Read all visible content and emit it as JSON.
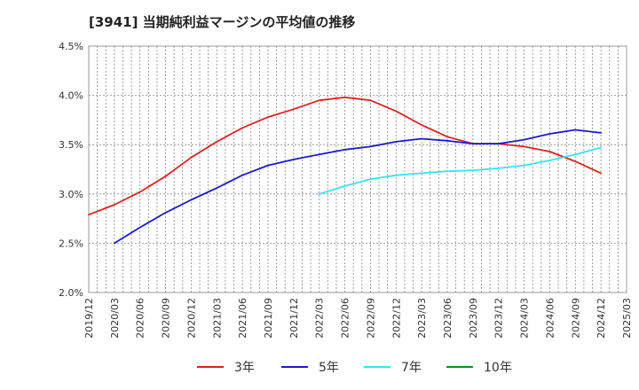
{
  "chart_data": {
    "type": "line",
    "title": "[3941]  当期純利益マージンの平均値の推移",
    "xlabel": "",
    "ylabel": "",
    "y_unit": "%",
    "ylim": [
      2.0,
      4.5
    ],
    "y_ticks": [
      "2.0%",
      "2.5%",
      "3.0%",
      "3.5%",
      "4.0%",
      "4.5%"
    ],
    "x_ticks": [
      "2019/12",
      "2020/03",
      "2020/06",
      "2020/09",
      "2020/12",
      "2021/03",
      "2021/06",
      "2021/09",
      "2021/12",
      "2022/03",
      "2022/06",
      "2022/09",
      "2022/12",
      "2023/03",
      "2023/06",
      "2023/09",
      "2023/12",
      "2024/03",
      "2024/06",
      "2024/09",
      "2024/12",
      "2025/03"
    ],
    "grid": true,
    "legend_position": "bottom",
    "series": [
      {
        "name": "3年",
        "color": "#dd2222",
        "x": [
          "2019/12",
          "2020/03",
          "2020/06",
          "2020/09",
          "2020/12",
          "2021/03",
          "2021/06",
          "2021/09",
          "2021/12",
          "2022/03",
          "2022/06",
          "2022/09",
          "2022/12",
          "2023/03",
          "2023/06",
          "2023/09",
          "2023/12",
          "2024/03",
          "2024/06",
          "2024/09",
          "2024/12"
        ],
        "values": [
          2.79,
          2.89,
          3.02,
          3.18,
          3.37,
          3.53,
          3.67,
          3.78,
          3.86,
          3.95,
          3.98,
          3.95,
          3.84,
          3.7,
          3.58,
          3.51,
          3.51,
          3.48,
          3.43,
          3.33,
          3.21
        ]
      },
      {
        "name": "5年",
        "color": "#1a1acc",
        "x": [
          "2020/03",
          "2020/06",
          "2020/09",
          "2020/12",
          "2021/03",
          "2021/06",
          "2021/09",
          "2021/12",
          "2022/03",
          "2022/06",
          "2022/09",
          "2022/12",
          "2023/03",
          "2023/06",
          "2023/09",
          "2023/12",
          "2024/03",
          "2024/06",
          "2024/09",
          "2024/12"
        ],
        "values": [
          2.5,
          2.66,
          2.81,
          2.94,
          3.06,
          3.19,
          3.29,
          3.35,
          3.4,
          3.45,
          3.48,
          3.53,
          3.56,
          3.54,
          3.51,
          3.51,
          3.55,
          3.61,
          3.65,
          3.62
        ]
      },
      {
        "name": "7年",
        "color": "#33e6f0",
        "x": [
          "2022/03",
          "2022/06",
          "2022/09",
          "2022/12",
          "2023/03",
          "2023/06",
          "2023/09",
          "2023/12",
          "2024/03",
          "2024/06",
          "2024/09",
          "2024/12"
        ],
        "values": [
          3.0,
          3.08,
          3.15,
          3.19,
          3.21,
          3.23,
          3.24,
          3.26,
          3.29,
          3.34,
          3.4,
          3.47
        ]
      },
      {
        "name": "10年",
        "color": "#228822",
        "x": [],
        "values": []
      }
    ]
  }
}
